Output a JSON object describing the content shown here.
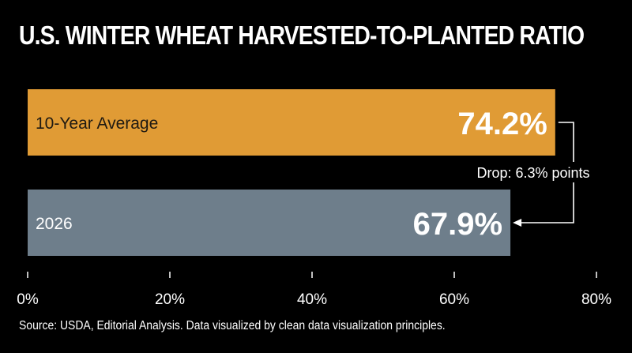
{
  "chart_data": {
    "type": "bar",
    "orientation": "horizontal",
    "title": "U.S. WINTER WHEAT HARVESTED-TO-PLANTED RATIO",
    "categories": [
      "10-Year Average",
      "2026"
    ],
    "values": [
      74.2,
      67.9
    ],
    "value_labels": [
      "74.2%",
      "67.9%"
    ],
    "bar_colors": [
      "#E09B35",
      "#6E7E8B"
    ],
    "xlim": [
      0,
      80
    ],
    "xticks": [
      0,
      20,
      40,
      60,
      80
    ],
    "xtick_labels": [
      "0%",
      "20%",
      "40%",
      "60%",
      "80%"
    ],
    "xlabel": "",
    "ylabel": "",
    "grid": false,
    "annotation": "Drop: 6.3% points",
    "source": "Source: USDA, Editorial Analysis. Data visualized by clean data visualization principles."
  }
}
